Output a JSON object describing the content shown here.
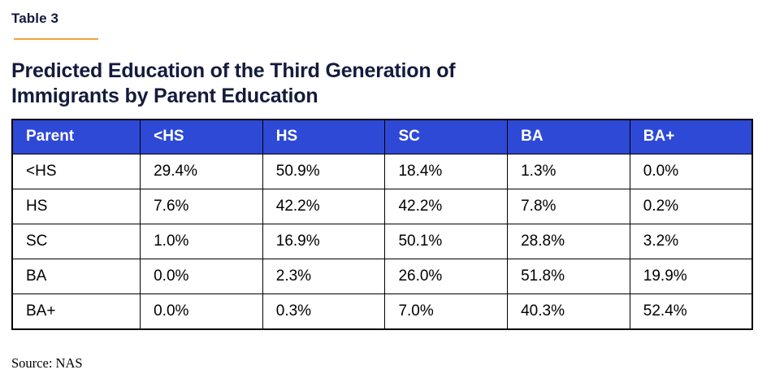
{
  "page": {
    "eyebrow": "Table 3",
    "title": "Predicted Education of the Third Generation of Immigrants by Parent Education",
    "source": "Source: NAS"
  },
  "colors": {
    "header_bg": "#2e49d6",
    "header_text": "#ffffff",
    "title_text": "#141b3d",
    "accent_orange": "#f5a03c",
    "border": "#000000",
    "cell_text": "#000000",
    "page_bg": "#ffffff"
  },
  "chart_data": {
    "type": "table",
    "title": "Predicted Education of the Third Generation of Immigrants by Parent Education",
    "columns": [
      "Parent",
      "<HS",
      "HS",
      "SC",
      "BA",
      "BA+"
    ],
    "rows": [
      {
        "label": "<HS",
        "values": [
          "29.4%",
          "50.9%",
          "18.4%",
          "1.3%",
          "0.0%"
        ]
      },
      {
        "label": "HS",
        "values": [
          "7.6%",
          "42.2%",
          "42.2%",
          "7.8%",
          "0.2%"
        ]
      },
      {
        "label": "SC",
        "values": [
          "1.0%",
          "16.9%",
          "50.1%",
          "28.8%",
          "3.2%"
        ]
      },
      {
        "label": "BA",
        "values": [
          "0.0%",
          "2.3%",
          "26.0%",
          "51.8%",
          "19.9%"
        ]
      },
      {
        "label": "BA+",
        "values": [
          "0.0%",
          "0.3%",
          "7.0%",
          "40.3%",
          "52.4%"
        ]
      }
    ],
    "source": "Source: NAS"
  }
}
